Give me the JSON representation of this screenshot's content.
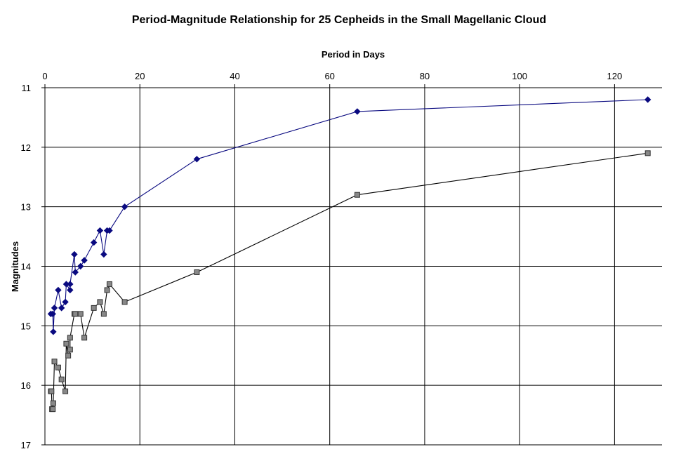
{
  "chart_data": {
    "type": "line",
    "title": "Period-Magnitude Relationship for 25 Cepheids in the Small Magellanic Cloud",
    "xlabel": "Period in Days",
    "ylabel": "Magnitudes",
    "xlim": [
      0,
      130
    ],
    "ylim": [
      11,
      17
    ],
    "y_inverted": true,
    "x_axis_position": "top",
    "xticks": [
      "0",
      "20",
      "40",
      "60",
      "80",
      "100",
      "120"
    ],
    "yticks": [
      "11",
      "12",
      "13",
      "14",
      "15",
      "16",
      "17"
    ],
    "grid": true,
    "legend": "none",
    "series": [
      {
        "color": "#0a0a80",
        "marker": "diamond",
        "points": [
          [
            1.25,
            14.8
          ],
          [
            1.66,
            14.8
          ],
          [
            1.76,
            15.1
          ],
          [
            2.0,
            14.7
          ],
          [
            2.8,
            14.4
          ],
          [
            3.5,
            14.7
          ],
          [
            4.3,
            14.6
          ],
          [
            4.5,
            14.3
          ],
          [
            5.3,
            14.4
          ],
          [
            5.3,
            14.3
          ],
          [
            6.2,
            13.8
          ],
          [
            6.4,
            14.1
          ],
          [
            7.5,
            14.0
          ],
          [
            8.3,
            13.9
          ],
          [
            10.3,
            13.6
          ],
          [
            11.6,
            13.4
          ],
          [
            12.4,
            13.8
          ],
          [
            13.1,
            13.4
          ],
          [
            13.6,
            13.4
          ],
          [
            16.8,
            13.0
          ],
          [
            32.0,
            12.2
          ],
          [
            65.8,
            11.4
          ],
          [
            127.0,
            11.2
          ]
        ]
      },
      {
        "color": "#888888",
        "marker": "square",
        "points": [
          [
            1.25,
            16.1
          ],
          [
            1.38,
            16.1
          ],
          [
            1.5,
            16.4
          ],
          [
            1.66,
            16.4
          ],
          [
            1.76,
            16.3
          ],
          [
            2.0,
            15.6
          ],
          [
            2.8,
            15.7
          ],
          [
            3.5,
            15.9
          ],
          [
            4.3,
            16.1
          ],
          [
            4.5,
            15.3
          ],
          [
            4.9,
            15.5
          ],
          [
            5.3,
            15.4
          ],
          [
            5.3,
            15.2
          ],
          [
            6.2,
            14.8
          ],
          [
            6.4,
            14.8
          ],
          [
            7.5,
            14.8
          ],
          [
            8.3,
            15.2
          ],
          [
            10.3,
            14.7
          ],
          [
            11.6,
            14.6
          ],
          [
            12.4,
            14.8
          ],
          [
            13.1,
            14.4
          ],
          [
            13.6,
            14.3
          ],
          [
            16.8,
            14.6
          ],
          [
            32.0,
            14.1
          ],
          [
            65.8,
            12.8
          ],
          [
            127.0,
            12.1
          ]
        ]
      }
    ]
  }
}
